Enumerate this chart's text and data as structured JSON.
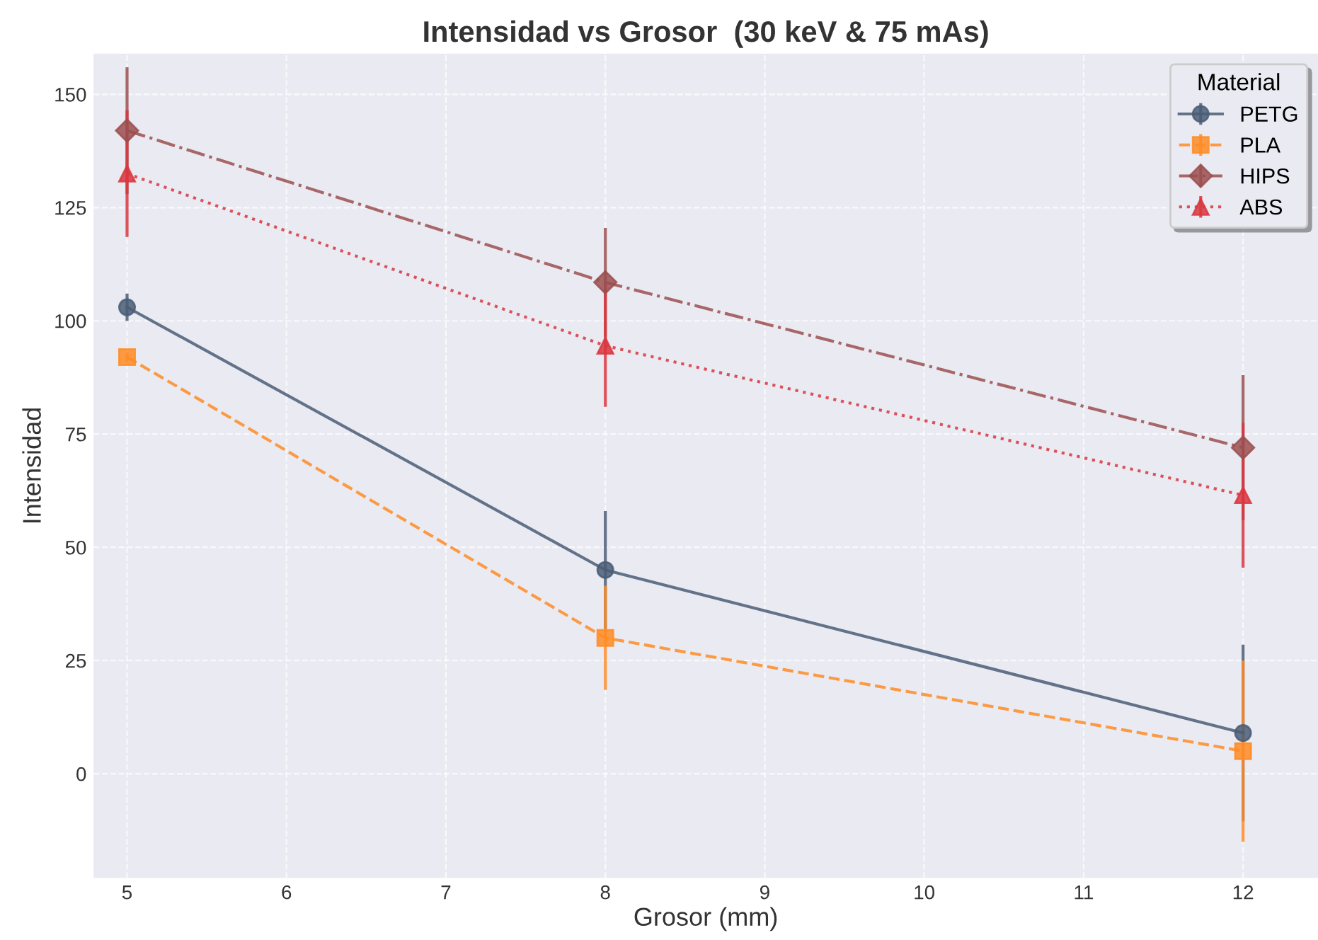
{
  "chart_data": {
    "type": "line",
    "title": "Intensidad vs Grosor  (30 keV & 75 mAs)",
    "xlabel": "Grosor (mm)",
    "ylabel": "Intensidad",
    "legend_title": "Material",
    "legend": "top right",
    "grid": true,
    "x": [
      5,
      8,
      12
    ],
    "xlim": [
      4.79,
      12.47
    ],
    "xticks": [
      5,
      6,
      7,
      8,
      9,
      10,
      11,
      12
    ],
    "ylim": [
      -23,
      159
    ],
    "yticks": [
      0,
      25,
      50,
      75,
      100,
      125,
      150
    ],
    "series": [
      {
        "name": "PETG",
        "color": "#4a5d75",
        "marker": "circle",
        "line_style": "solid",
        "values": [
          103,
          45,
          9
        ],
        "errors": [
          3,
          13,
          19.5
        ]
      },
      {
        "name": "PLA",
        "color": "#ff8c26",
        "marker": "square",
        "line_style": "dashed",
        "values": [
          92,
          30,
          5
        ],
        "errors": [
          1,
          11.5,
          20
        ]
      },
      {
        "name": "HIPS",
        "color": "#9b4f4f",
        "marker": "diamond",
        "line_style": "dashdot",
        "values": [
          142,
          108.5,
          72
        ],
        "errors": [
          14,
          12,
          16
        ]
      },
      {
        "name": "ABS",
        "color": "#d9363e",
        "marker": "triangle",
        "line_style": "dotted",
        "values": [
          132.5,
          94.5,
          61.5
        ],
        "errors": [
          14,
          13.5,
          16
        ]
      }
    ]
  }
}
